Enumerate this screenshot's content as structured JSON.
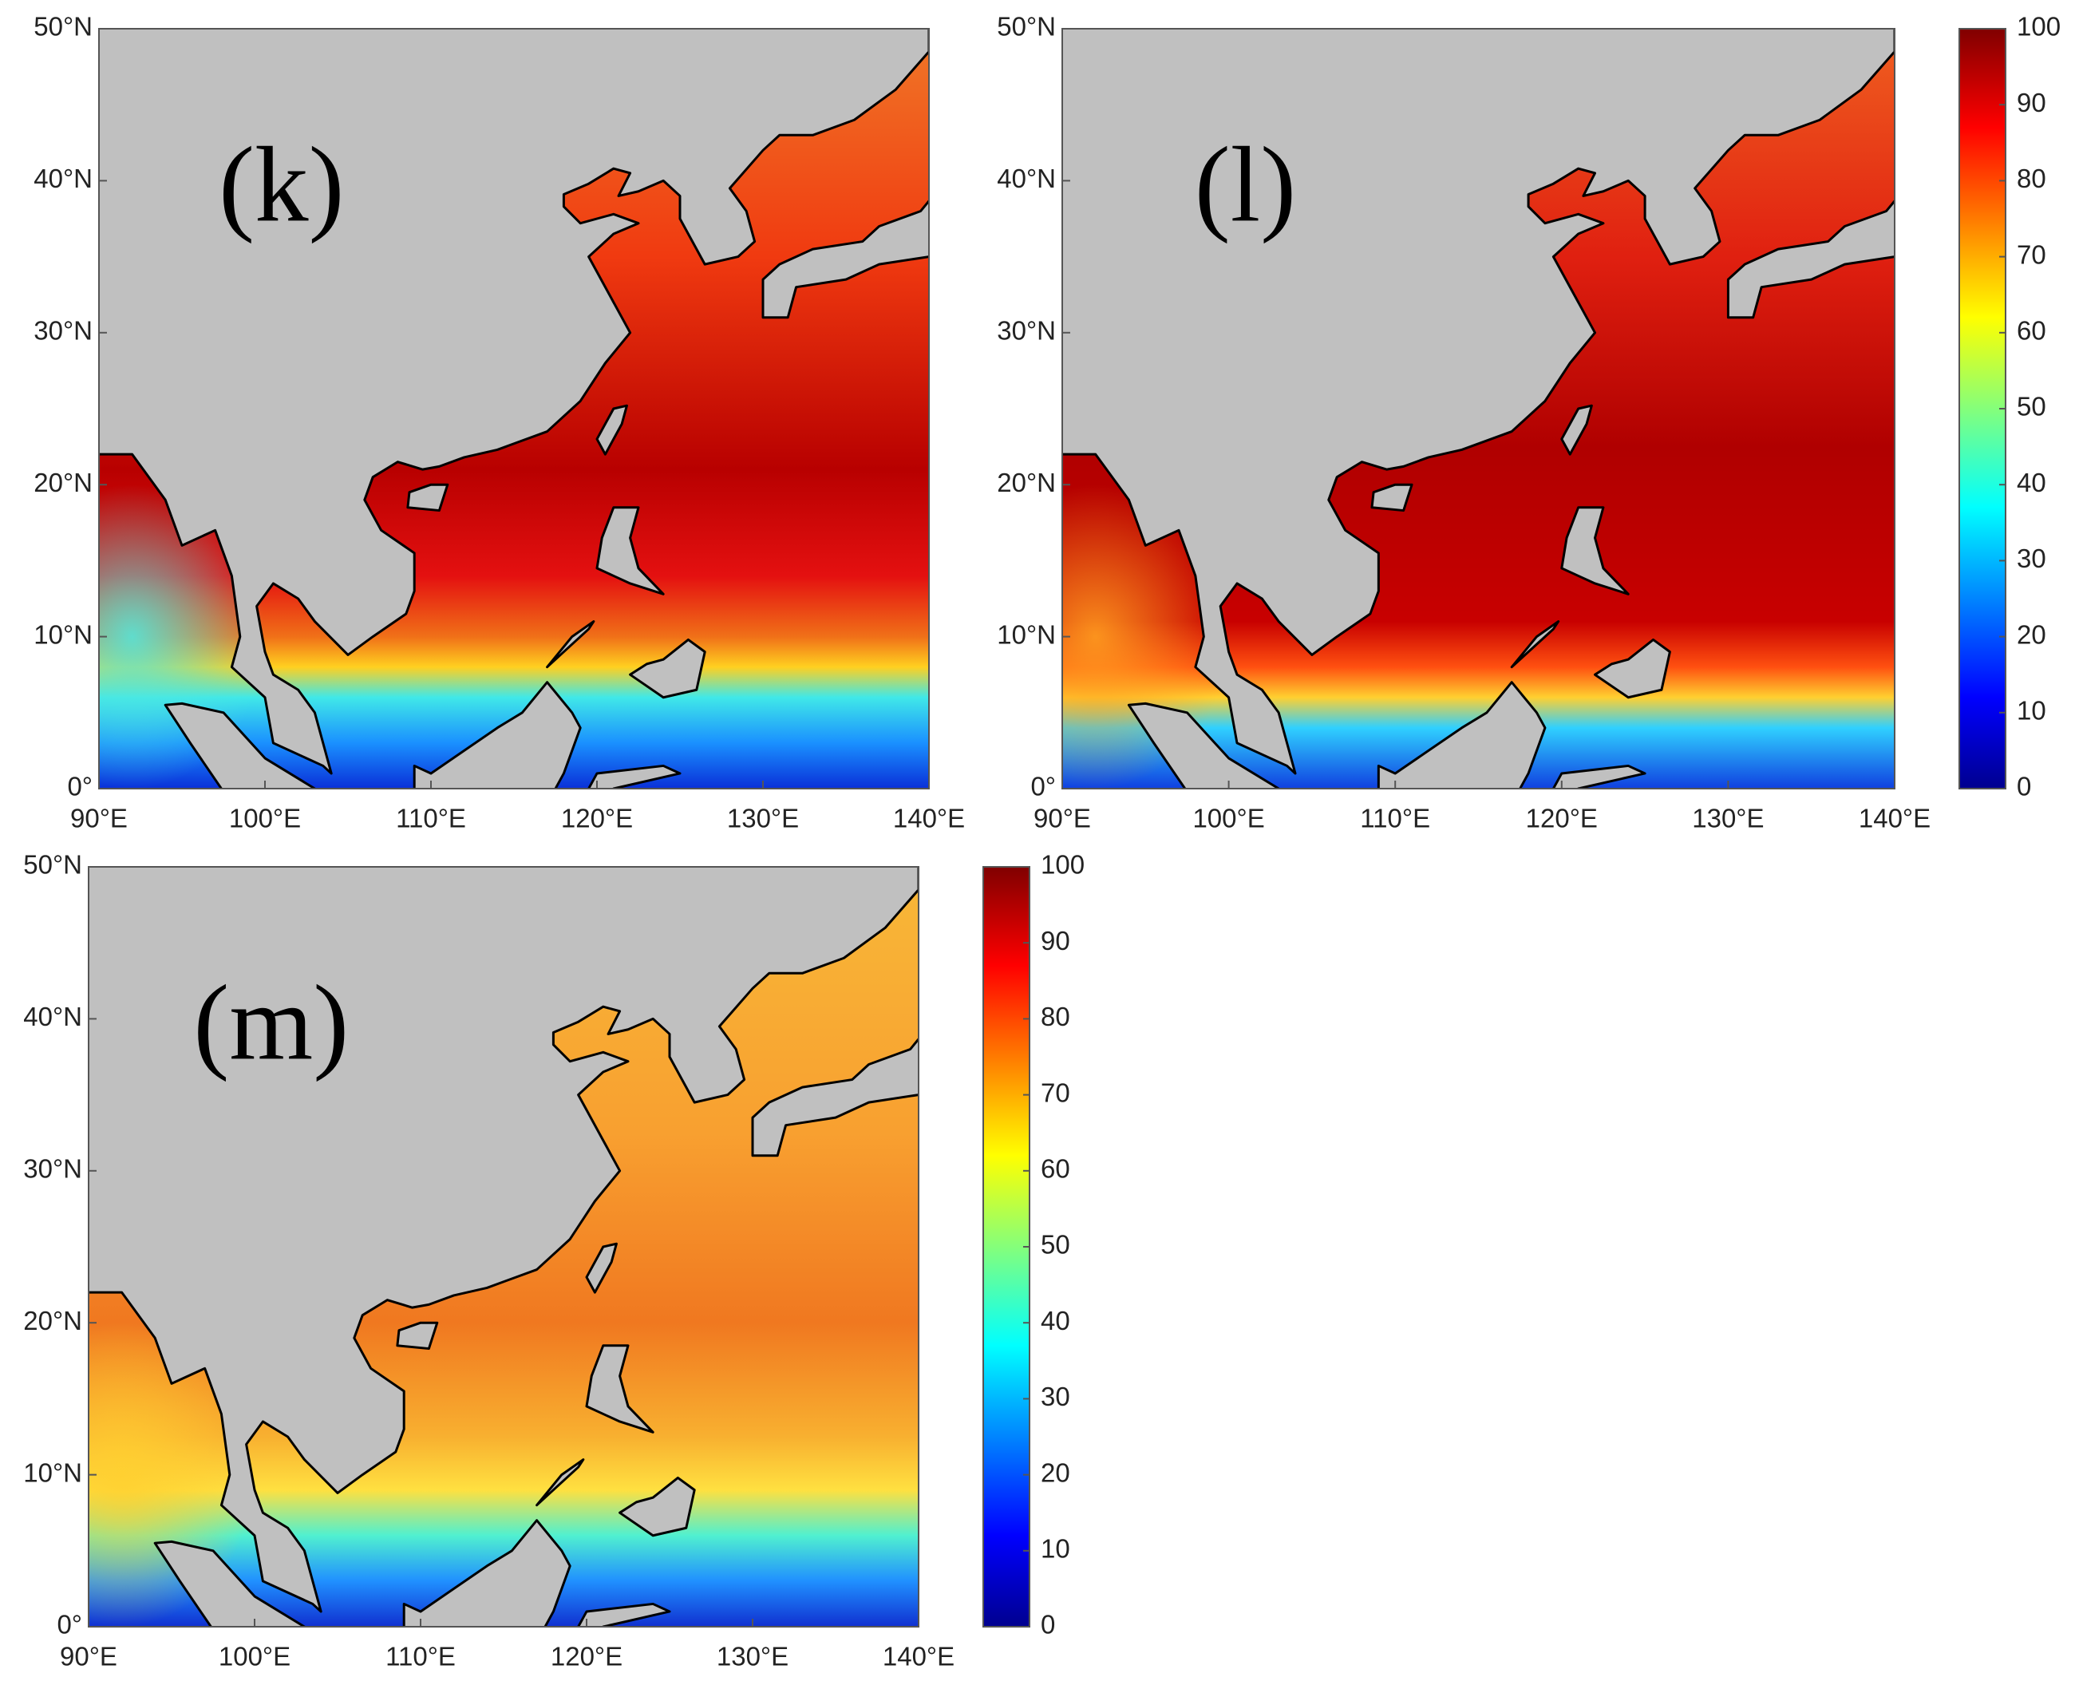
{
  "panels": [
    {
      "label": "(k)"
    },
    {
      "label": "(l)"
    },
    {
      "label": "(m)"
    }
  ],
  "axes": {
    "xlim": [
      90,
      140
    ],
    "ylim": [
      0,
      50
    ],
    "xticks": [
      {
        "value": 90,
        "label": "90°E"
      },
      {
        "value": 100,
        "label": "100°E"
      },
      {
        "value": 110,
        "label": "110°E"
      },
      {
        "value": 120,
        "label": "120°E"
      },
      {
        "value": 130,
        "label": "130°E"
      },
      {
        "value": 140,
        "label": "140°E"
      }
    ],
    "yticks": [
      {
        "value": 0,
        "label": "0°"
      },
      {
        "value": 10,
        "label": "10°N"
      },
      {
        "value": 20,
        "label": "20°N"
      },
      {
        "value": 30,
        "label": "30°N"
      },
      {
        "value": 40,
        "label": "40°N"
      },
      {
        "value": 50,
        "label": "50°N"
      }
    ]
  },
  "colorbar": {
    "lim": [
      0,
      100
    ],
    "ticks": [
      0,
      10,
      20,
      30,
      40,
      50,
      60,
      70,
      80,
      90,
      100
    ],
    "colormap": "jet"
  }
}
